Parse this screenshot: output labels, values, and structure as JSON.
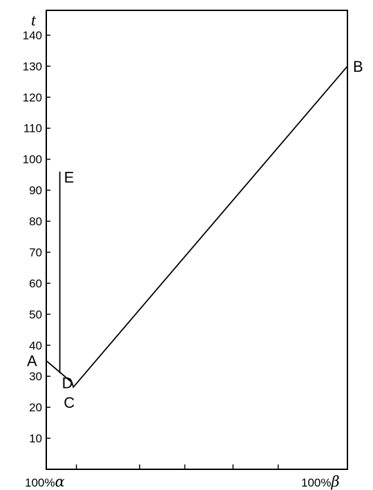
{
  "chart_data": {
    "type": "line",
    "ylabel": "t",
    "ylim": [
      0,
      148
    ],
    "xlim": [
      0,
      100
    ],
    "yticks": [
      10,
      20,
      30,
      40,
      50,
      60,
      70,
      80,
      90,
      100,
      110,
      120,
      130,
      140
    ],
    "xticks": [
      0,
      10,
      31,
      46,
      62,
      77
    ],
    "x_left_label": "100%",
    "x_left_greek": "α",
    "x_right_label": "100%",
    "x_right_greek": "β",
    "grid": false,
    "series": [
      {
        "values": [
          {
            "x": 0,
            "y": 35
          },
          {
            "x": 8.5,
            "y": 28
          },
          {
            "x": 9,
            "y": 26.5
          },
          {
            "x": 100,
            "y": 130
          }
        ]
      },
      {
        "values": [
          {
            "x": 4.5,
            "y": 31
          },
          {
            "x": 4.5,
            "y": 96
          }
        ]
      }
    ],
    "points": [
      {
        "label": "A",
        "x": 0,
        "y": 35
      },
      {
        "label": "D",
        "x": 4.5,
        "y": 31
      },
      {
        "label": "C",
        "x": 9,
        "y": 26.5
      },
      {
        "label": "B",
        "x": 100,
        "y": 130
      },
      {
        "label": "E",
        "x": 4.5,
        "y": 96
      }
    ]
  }
}
